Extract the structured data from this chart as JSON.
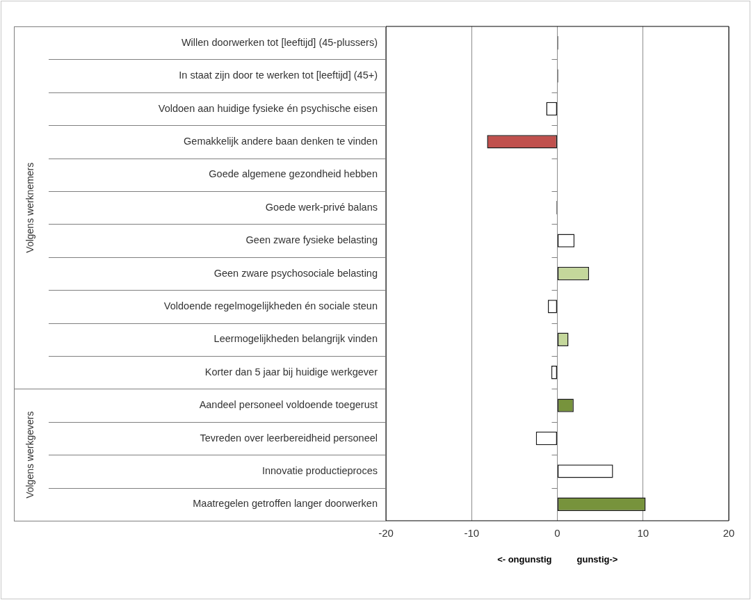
{
  "chart_data": {
    "type": "bar",
    "orientation": "horizontal",
    "categories": [
      "Willen doorwerken tot [leeftijd] (45-plussers)",
      "In staat zijn door te werken tot [leeftijd] (45+)",
      "Voldoen aan huidige fysieke én psychische eisen",
      "Gemakkelijk andere baan denken te vinden",
      "Goede algemene gezondheid hebben",
      "Goede werk-privé balans",
      "Geen zware fysieke belasting",
      "Geen zware psychosociale belasting",
      "Voldoende regelmogelijkheden én sociale steun",
      "Leermogelijkheden belangrijk vinden",
      "Korter dan 5 jaar bij huidige werkgever",
      "Aandeel personeel voldoende toegerust",
      "Tevreden over leerbereidheid personeel",
      "Innovatie productieproces",
      "Maatregelen getroffen langer doorwerken"
    ],
    "values": [
      0.1,
      0.1,
      -1.3,
      -8.2,
      0,
      -0.1,
      2.0,
      3.7,
      -1.1,
      1.3,
      -0.7,
      1.9,
      -2.5,
      6.5,
      10.3
    ],
    "colors": [
      "#1a1a1a",
      "#1a1a1a",
      "#ffffff",
      "#c0504d",
      "#ffffff",
      "#1a1a1a",
      "#ffffff",
      "#c4d79b",
      "#ffffff",
      "#c4d79b",
      "#ffffff",
      "#77933c",
      "#ffffff",
      "#ffffff",
      "#77933c"
    ],
    "xlim": [
      -20,
      20
    ],
    "xticks": [
      -20,
      -10,
      0,
      10,
      20
    ],
    "grid": "x",
    "legend": false,
    "annotations": [
      "Volgens werknemers",
      "Volgens werkgevers",
      "<- ongunstig",
      "gunstig->"
    ]
  }
}
